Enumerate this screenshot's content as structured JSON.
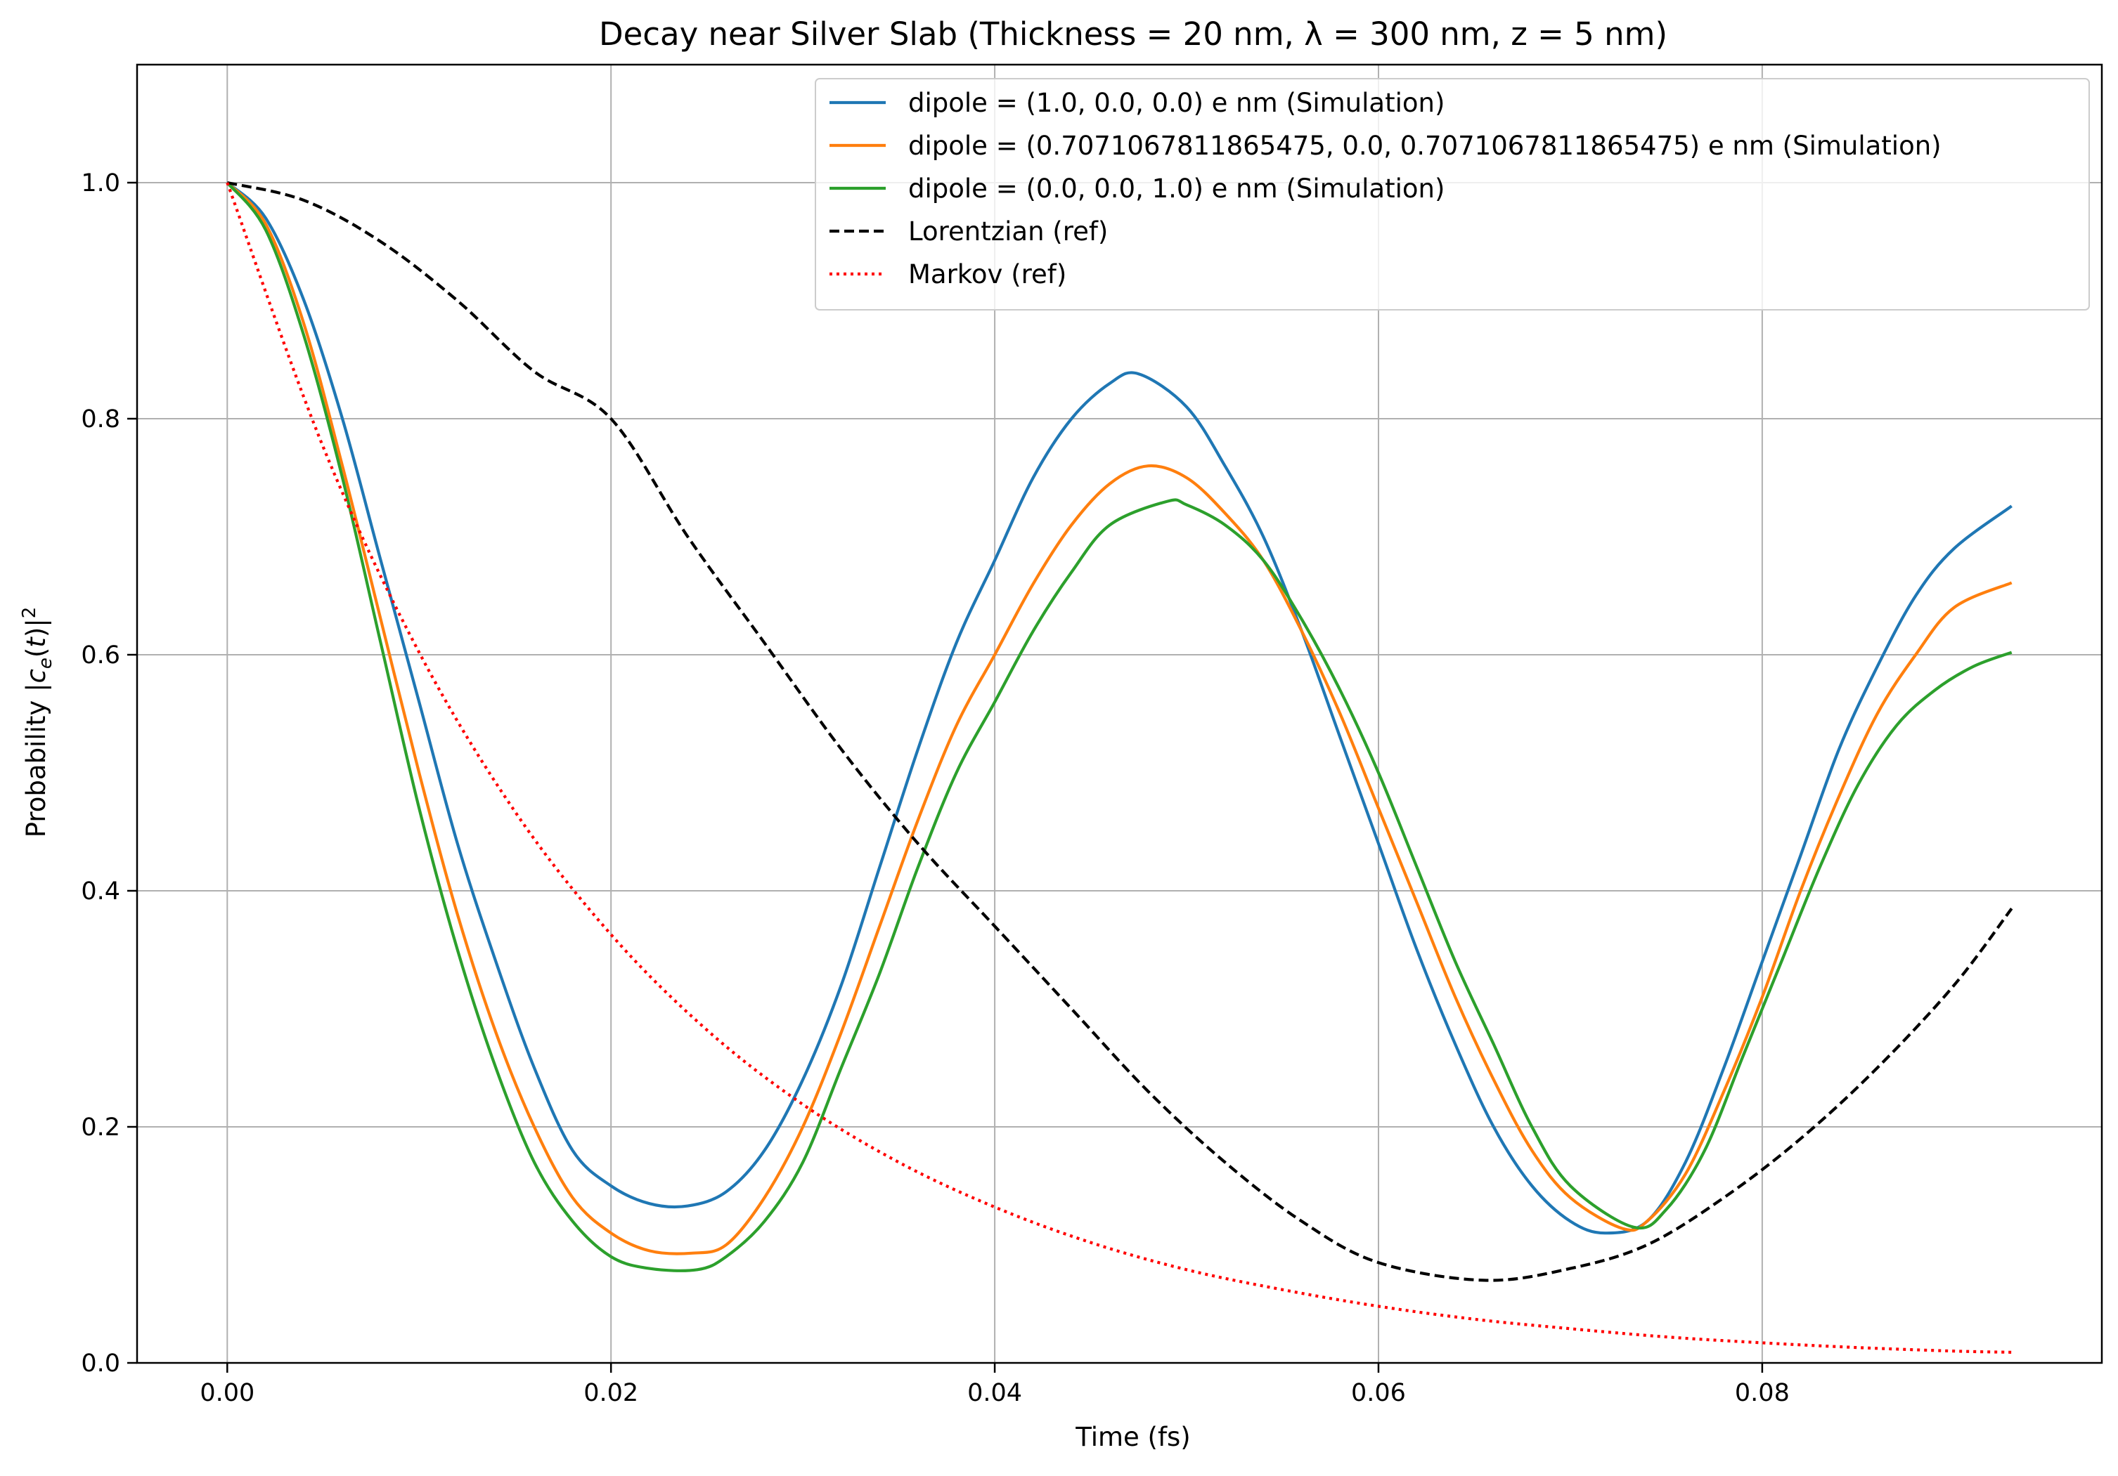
{
  "chart_data": {
    "type": "line",
    "title": "Decay near Silver Slab (Thickness = 20 nm, λ = 300 nm, z = 5 nm)",
    "xlabel": "Time (fs)",
    "ylabel": "Probability |c_e(t)|²",
    "xlim": [
      -0.0047,
      0.0977
    ],
    "ylim": [
      0.0,
      1.1
    ],
    "xticks": [
      0.0,
      0.02,
      0.04,
      0.06,
      0.08
    ],
    "xtick_labels": [
      "0.00",
      "0.02",
      "0.04",
      "0.06",
      "0.08"
    ],
    "yticks": [
      0.0,
      0.2,
      0.4,
      0.6,
      0.8,
      1.0
    ],
    "ytick_labels": [
      "0.0",
      "0.2",
      "0.4",
      "0.6",
      "0.8",
      "1.0"
    ],
    "grid": true,
    "legend_position": "top-right",
    "series": [
      {
        "name": "dipole = (1.0, 0.0, 0.0) e nm (Simulation)",
        "color": "#1f77b4",
        "style": "solid",
        "x": [
          0.0,
          0.002,
          0.004,
          0.006,
          0.008,
          0.01,
          0.012,
          0.014,
          0.016,
          0.018,
          0.02,
          0.022,
          0.024,
          0.026,
          0.028,
          0.03,
          0.032,
          0.034,
          0.036,
          0.038,
          0.04,
          0.042,
          0.044,
          0.046,
          0.0475,
          0.05,
          0.052,
          0.054,
          0.056,
          0.058,
          0.06,
          0.062,
          0.064,
          0.066,
          0.068,
          0.07,
          0.0718,
          0.074,
          0.076,
          0.078,
          0.08,
          0.082,
          0.084,
          0.086,
          0.088,
          0.09,
          0.093
        ],
        "y": [
          1.0,
          0.97,
          0.9,
          0.8,
          0.68,
          0.56,
          0.44,
          0.34,
          0.25,
          0.18,
          0.15,
          0.135,
          0.133,
          0.145,
          0.18,
          0.24,
          0.32,
          0.42,
          0.52,
          0.61,
          0.68,
          0.75,
          0.8,
          0.83,
          0.838,
          0.81,
          0.76,
          0.7,
          0.62,
          0.53,
          0.44,
          0.35,
          0.27,
          0.2,
          0.15,
          0.12,
          0.11,
          0.12,
          0.17,
          0.25,
          0.34,
          0.43,
          0.52,
          0.59,
          0.65,
          0.69,
          0.726
        ]
      },
      {
        "name": "dipole = (0.7071067811865475, 0.0, 0.7071067811865475) e nm (Simulation)",
        "color": "#ff7f0e",
        "style": "solid",
        "x": [
          0.0,
          0.002,
          0.004,
          0.006,
          0.008,
          0.01,
          0.012,
          0.014,
          0.016,
          0.018,
          0.02,
          0.022,
          0.0242,
          0.026,
          0.028,
          0.03,
          0.032,
          0.034,
          0.036,
          0.038,
          0.04,
          0.042,
          0.044,
          0.046,
          0.048,
          0.05,
          0.052,
          0.054,
          0.056,
          0.058,
          0.06,
          0.062,
          0.064,
          0.066,
          0.068,
          0.07,
          0.0727,
          0.074,
          0.076,
          0.078,
          0.08,
          0.082,
          0.084,
          0.086,
          0.088,
          0.09,
          0.093
        ],
        "y": [
          1.0,
          0.965,
          0.88,
          0.76,
          0.63,
          0.5,
          0.38,
          0.28,
          0.2,
          0.14,
          0.11,
          0.095,
          0.093,
          0.1,
          0.14,
          0.2,
          0.28,
          0.37,
          0.46,
          0.54,
          0.6,
          0.66,
          0.71,
          0.745,
          0.76,
          0.75,
          0.72,
          0.68,
          0.62,
          0.55,
          0.47,
          0.39,
          0.31,
          0.24,
          0.18,
          0.14,
          0.114,
          0.12,
          0.16,
          0.23,
          0.31,
          0.4,
          0.48,
          0.55,
          0.6,
          0.64,
          0.661
        ]
      },
      {
        "name": "dipole = (0.0, 0.0, 1.0) e nm (Simulation)",
        "color": "#2ca02c",
        "style": "solid",
        "x": [
          0.0,
          0.002,
          0.004,
          0.006,
          0.008,
          0.01,
          0.012,
          0.014,
          0.016,
          0.018,
          0.02,
          0.022,
          0.0245,
          0.026,
          0.028,
          0.03,
          0.032,
          0.034,
          0.036,
          0.038,
          0.04,
          0.042,
          0.044,
          0.046,
          0.049,
          0.05,
          0.052,
          0.054,
          0.056,
          0.058,
          0.06,
          0.062,
          0.064,
          0.066,
          0.068,
          0.07,
          0.0733,
          0.075,
          0.077,
          0.079,
          0.081,
          0.083,
          0.085,
          0.087,
          0.089,
          0.091,
          0.093
        ],
        "y": [
          1.0,
          0.96,
          0.87,
          0.75,
          0.61,
          0.47,
          0.35,
          0.25,
          0.17,
          0.12,
          0.09,
          0.08,
          0.079,
          0.09,
          0.12,
          0.17,
          0.25,
          0.33,
          0.42,
          0.5,
          0.56,
          0.62,
          0.67,
          0.71,
          0.73,
          0.727,
          0.71,
          0.68,
          0.63,
          0.57,
          0.5,
          0.42,
          0.34,
          0.27,
          0.2,
          0.15,
          0.115,
          0.13,
          0.18,
          0.26,
          0.34,
          0.42,
          0.49,
          0.54,
          0.57,
          0.59,
          0.602
        ]
      },
      {
        "name": "Lorentzian (ref)",
        "color": "#000000",
        "style": "dashed",
        "x": [
          0.0,
          0.004,
          0.008,
          0.012,
          0.016,
          0.02,
          0.024,
          0.028,
          0.032,
          0.036,
          0.04,
          0.044,
          0.048,
          0.052,
          0.056,
          0.06,
          0.0655,
          0.07,
          0.074,
          0.078,
          0.082,
          0.086,
          0.09,
          0.093
        ],
        "y": [
          1.0,
          0.985,
          0.95,
          0.9,
          0.84,
          0.8,
          0.7,
          0.61,
          0.52,
          0.44,
          0.37,
          0.3,
          0.23,
          0.17,
          0.12,
          0.085,
          0.07,
          0.08,
          0.1,
          0.14,
          0.19,
          0.25,
          0.32,
          0.385
        ]
      },
      {
        "name": "Markov (ref)",
        "color": "#ff0000",
        "style": "dotted",
        "x": [
          0.0,
          0.005,
          0.01,
          0.015,
          0.02,
          0.025,
          0.03,
          0.035,
          0.04,
          0.045,
          0.05,
          0.055,
          0.06,
          0.065,
          0.07,
          0.075,
          0.08,
          0.085,
          0.09,
          0.093
        ],
        "y": [
          1.0,
          0.776,
          0.602,
          0.467,
          0.363,
          0.282,
          0.219,
          0.17,
          0.132,
          0.102,
          0.079,
          0.062,
          0.048,
          0.037,
          0.029,
          0.022,
          0.017,
          0.013,
          0.01,
          0.009
        ]
      }
    ]
  }
}
